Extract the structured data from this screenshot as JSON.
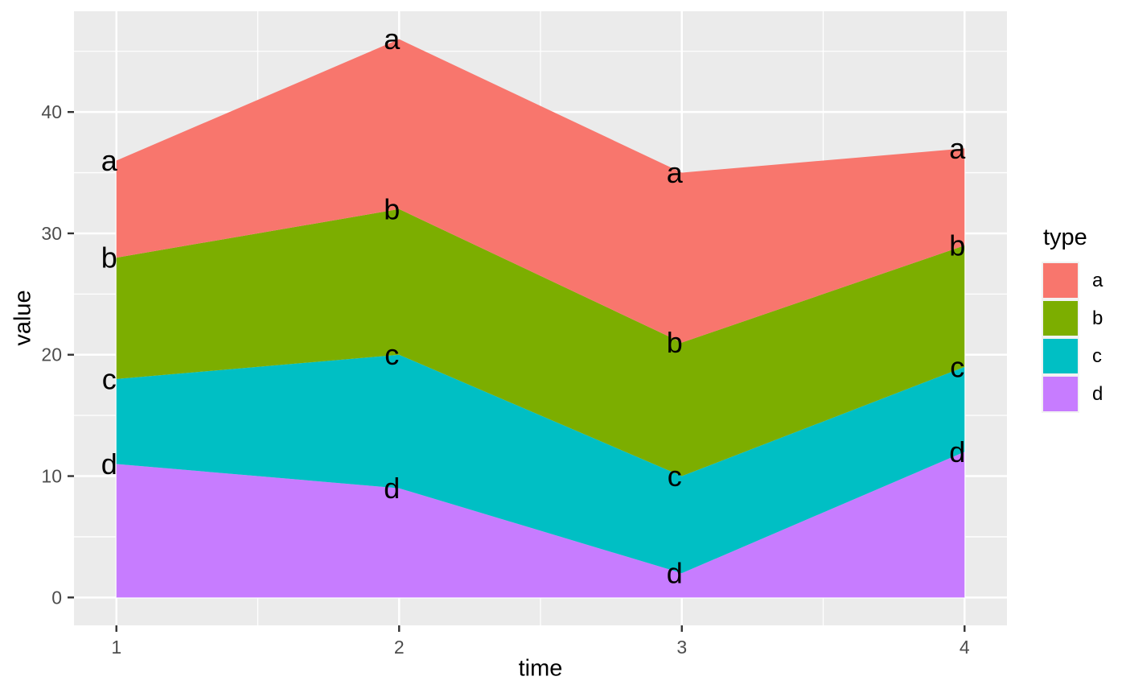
{
  "chart_data": {
    "type": "area",
    "stacked": true,
    "title": "",
    "xlabel": "time",
    "ylabel": "value",
    "x": [
      1,
      2,
      3,
      4
    ],
    "x_ticks": [
      "1",
      "2",
      "3",
      "4"
    ],
    "y_tick_values": [
      0,
      10,
      20,
      30,
      40
    ],
    "y_ticks": [
      "0",
      "10",
      "20",
      "30",
      "40"
    ],
    "y_minor_values": [
      5,
      15,
      25,
      35,
      45
    ],
    "x_minor_values": [
      1.5,
      2.5,
      3.5
    ],
    "xlim": [
      0.85,
      4.15
    ],
    "ylim": [
      -2.3,
      48.3
    ],
    "grid": true,
    "legend_position": "right",
    "point_labels_shown": true,
    "series": [
      {
        "name": "d",
        "values": [
          11,
          9,
          2,
          12
        ],
        "cumulative": [
          11,
          9,
          2,
          12
        ],
        "color": "#C77CFF"
      },
      {
        "name": "c",
        "values": [
          7,
          11,
          8,
          7
        ],
        "cumulative": [
          18,
          20,
          10,
          19
        ],
        "color": "#00BFC4"
      },
      {
        "name": "b",
        "values": [
          10,
          12,
          11,
          10
        ],
        "cumulative": [
          28,
          32,
          21,
          29
        ],
        "color": "#7CAE00"
      },
      {
        "name": "a",
        "values": [
          8,
          14,
          14,
          8
        ],
        "cumulative": [
          36,
          46,
          35,
          37
        ],
        "color": "#F8766D"
      }
    ]
  },
  "legend": {
    "title": "type",
    "items": [
      {
        "label": "a",
        "color": "#F8766D"
      },
      {
        "label": "b",
        "color": "#7CAE00"
      },
      {
        "label": "c",
        "color": "#00BFC4"
      },
      {
        "label": "d",
        "color": "#C77CFF"
      }
    ]
  },
  "theme": {
    "background": "#FFFFFF",
    "panel_bg": "#EBEBEB",
    "grid_color": "#FFFFFF",
    "tick_color": "#333333",
    "tick_label_color": "#4D4D4D",
    "title_color": "#000000",
    "point_label_color": "#000000",
    "legend_key_bg": "#F2F2F2"
  }
}
